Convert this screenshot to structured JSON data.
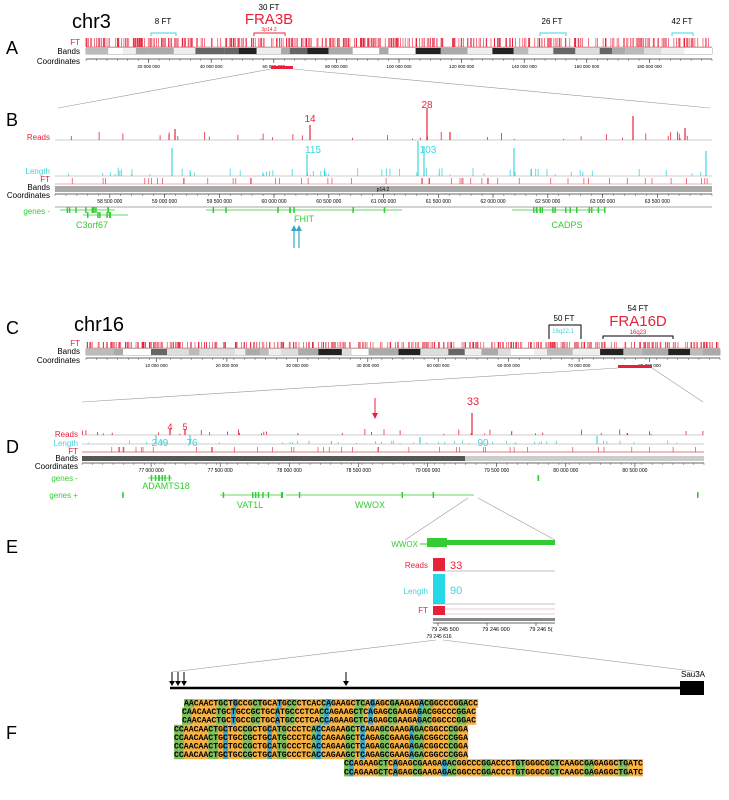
{
  "panels": {
    "A": "A",
    "B": "B",
    "C": "C",
    "D": "D",
    "E": "E",
    "F": "F"
  },
  "colors": {
    "ft": "#e8213a",
    "reads": "#e8213a",
    "length": "#3fd4de",
    "genes": "#33cc33",
    "band_dark": "#333333",
    "band_mid": "#888888",
    "band_light": "#cccccc",
    "seq_orange": "#f5b041",
    "seq_green": "#7dbd5a",
    "seq_blue": "#3aa6c8"
  },
  "panelA": {
    "chrom": "chr3",
    "track_labels": {
      "ft": "FT",
      "bands": "Bands",
      "coords": "Coordinates"
    },
    "markers": [
      {
        "label": "8 FT"
      },
      {
        "label": "30 FT",
        "name": "FRA3B",
        "band": "3p14.2"
      },
      {
        "label": "26 FT"
      },
      {
        "label": "42 FT"
      }
    ],
    "coord_ticks": [
      "20 000 000",
      "40 000 000",
      "60 000 000",
      "80 000 000",
      "100 000 000",
      "120 000 000",
      "140 000 000",
      "160 000 000",
      "180 000 000"
    ]
  },
  "panelB": {
    "track_labels": {
      "reads": "Reads",
      "length": "Length",
      "ft": "FT",
      "bands": "Bands",
      "coords": "Coordinates",
      "genes": "genes -"
    },
    "peak_labels": [
      "14",
      "28",
      "115",
      "103"
    ],
    "band_label": "p14.2",
    "coord_ticks": [
      "58 500 000",
      "59 000 000",
      "59 500 000",
      "60 000 000",
      "60 500 000",
      "61 000 000",
      "61 500 000",
      "62 000 000",
      "62 500 000",
      "63 000 000",
      "63 500 000"
    ],
    "genes": [
      "C3orf67",
      "FHIT",
      "CADPS"
    ]
  },
  "panelC": {
    "chrom": "chr16",
    "track_labels": {
      "ft": "FT",
      "bands": "Bands",
      "coords": "Coordinates"
    },
    "markers": [
      {
        "label": "50 FT",
        "band": "16q22.1"
      },
      {
        "label": "54 FT",
        "name": "FRA16D",
        "band": "16q23"
      }
    ],
    "coord_ticks": [
      "10 000 000",
      "20 000 000",
      "30 000 000",
      "40 000 000",
      "50 000 000",
      "60 000 000",
      "70 000 000",
      "80 000 000"
    ]
  },
  "panelD": {
    "track_labels": {
      "reads": "Reads",
      "length": "Length",
      "ft": "FT",
      "bands": "Bands",
      "coords": "Coordinates",
      "genes_minus": "genes -",
      "genes_plus": "genes +"
    },
    "peak_labels": [
      "4",
      "5",
      "33",
      "249",
      "76",
      "90"
    ],
    "coord_ticks": [
      "77 000 000",
      "77 500 000",
      "78 000 000",
      "78 500 000",
      "79 000 000",
      "79 500 000",
      "80 000 000",
      "80 500 000"
    ],
    "genes": [
      "ADAMTS18",
      "VAT1L",
      "WWOX"
    ]
  },
  "panelE": {
    "gene": "WWOX",
    "track_labels": {
      "reads": "Reads",
      "length": "Length",
      "ft": "FT"
    },
    "reads_value": "33",
    "length_value": "90",
    "coord_ticks": [
      "79 245 500",
      "79 246 000",
      "79 246 5("
    ],
    "coord_sub": "79 245 616"
  },
  "panelF": {
    "enzyme": "Sau3A",
    "sequences": [
      "AACAACTGCTGCCGCTGCATGCCCTCACCAGAAGCTCAGAGCGAAGAGACGGCCCGGACC",
      "CAACAACTGCTGCCGCTGCATGCCCTCACCAGAAGCTCAGAGCGAAGAGACGGCCCGGAC",
      "CAACAACTGCTGCCGCTGCATGCCCTCACCAGAAGCTCAGAGCGAAGAGACGGCCCGGAC",
      "CCAACAACTGCTGCCGCTGCATGCCCTCACCAGAAGCTCAGAGCGAAGAGACGGCCCGGA",
      "CCAACAACTGCTGCCGCTGCATGCCCTCACCAGAAGCTCAGAGCGAAGAGACGGCCCGGA",
      "CCAACAACTGCTGCCGCTGCATGCCCTCACCAGAAGCTCAGAGCGAAGAGACGGCCCGGA",
      "CCAACAACTGCTGCCGCTGCATGCCCTCACCAGAAGCTCAGAGCGAAGAGACGGCCCGGA",
      "CCAGAAGCTCAGAGCGAAGAGACGGCCCGGACCCTGTGGGCGCTCAAGCGAGAGGCTGATC",
      "CCAGAAGCTCAGAGCGAAGAGACGGCCCGGACCCTGTGGGCGCTCAAGCGAGAGGCTGATC"
    ]
  }
}
